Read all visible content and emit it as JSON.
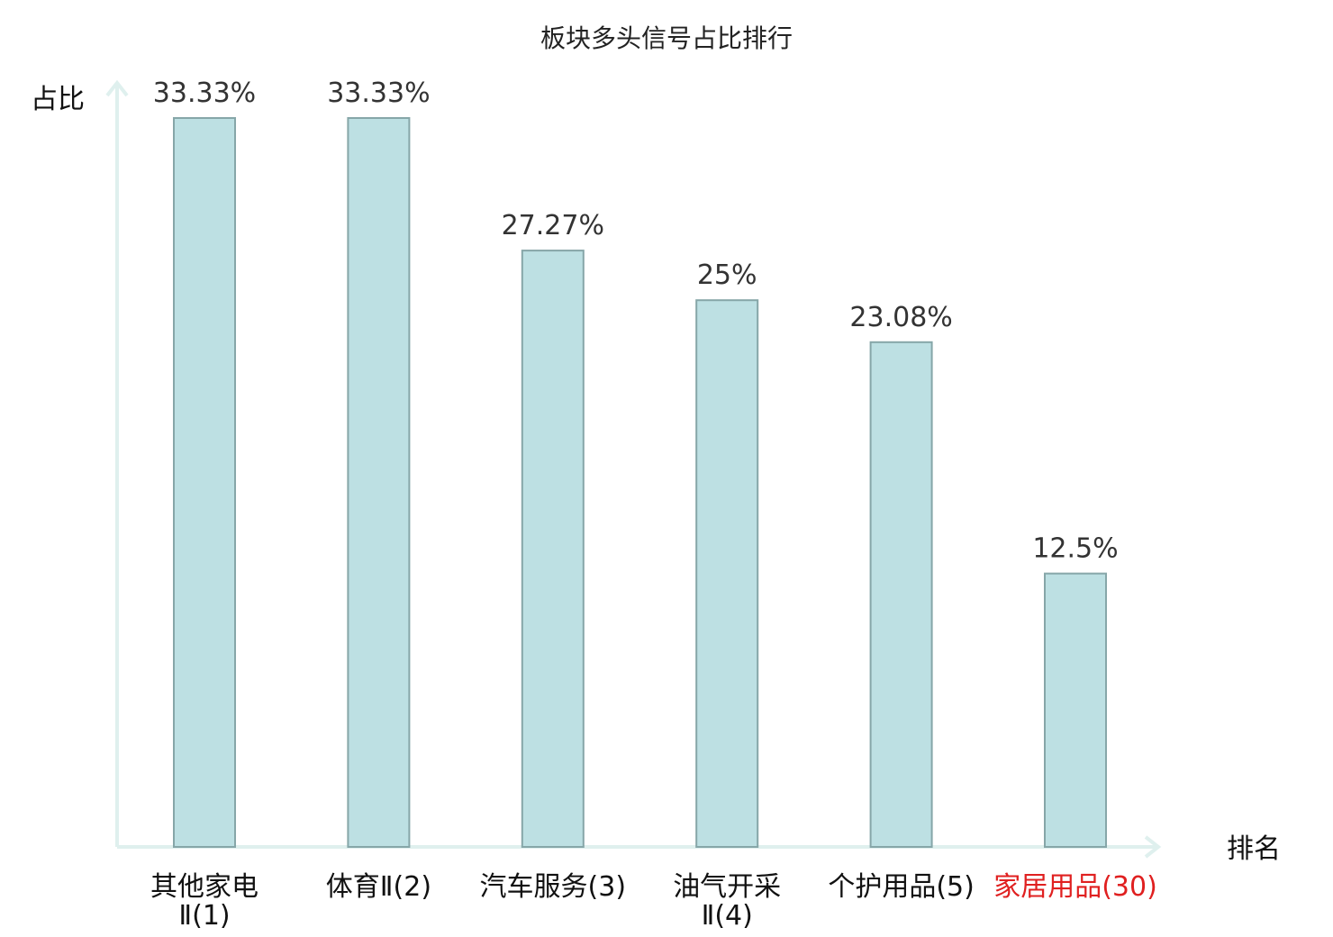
{
  "chart_data": {
    "type": "bar",
    "title": "板块多头信号占比排行",
    "ylabel": "占比",
    "xlabel": "排名",
    "categories": [
      {
        "lines": [
          "其他家电",
          "Ⅱ(1)"
        ],
        "highlight": false
      },
      {
        "lines": [
          "体育Ⅱ(2)"
        ],
        "highlight": false
      },
      {
        "lines": [
          "汽车服务(3)"
        ],
        "highlight": false
      },
      {
        "lines": [
          "油气开采",
          "Ⅱ(4)"
        ],
        "highlight": false
      },
      {
        "lines": [
          "个护用品(5)"
        ],
        "highlight": false
      },
      {
        "lines": [
          "家居用品(30)"
        ],
        "highlight": true
      }
    ],
    "values": [
      33.33,
      33.33,
      27.27,
      25,
      23.08,
      12.5
    ],
    "value_labels": [
      "33.33%",
      "33.33%",
      "27.27%",
      "25%",
      "23.08%",
      "12.5%"
    ],
    "ylim": [
      0,
      33.33
    ],
    "grid": false,
    "colors": {
      "bar_fill": "#bde0e3",
      "bar_stroke": "#86a6a8",
      "axis": "#dff0ee",
      "highlight_text": "#e02020"
    }
  }
}
